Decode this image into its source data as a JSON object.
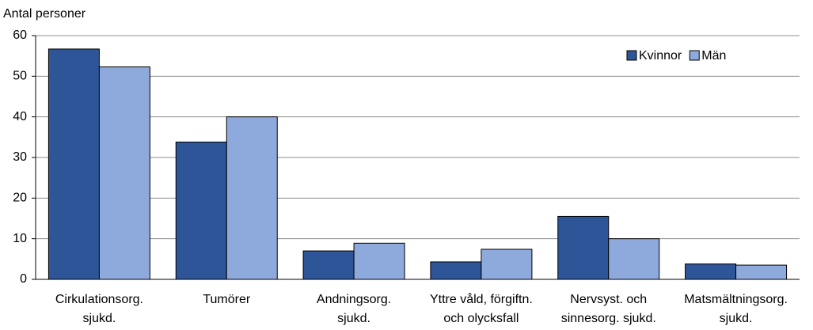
{
  "chart_data": {
    "type": "bar",
    "y_label": "Antal personer",
    "categories": [
      "Cirkulationsorg.\nsjukd.",
      "Tumörer",
      "Andningsorg.\nsjukd.",
      "Yttre våld, förgiftn.\noch olycksfall",
      "Nervsyst. och\nsinnesorg. sjukd.",
      "Matsmältningsorg.\nsjukd."
    ],
    "series": [
      {
        "name": "Kvinnor",
        "color": "#2e5597",
        "values": [
          56.7,
          33.8,
          7.0,
          4.3,
          15.5,
          3.8
        ]
      },
      {
        "name": "Män",
        "color": "#8eaadc",
        "values": [
          52.3,
          40.0,
          8.9,
          7.4,
          10.0,
          3.5
        ]
      }
    ],
    "ylim": [
      0,
      60
    ],
    "yticks": [
      0,
      10,
      20,
      30,
      40,
      50,
      60
    ],
    "grid": true,
    "legend": "top-right"
  }
}
